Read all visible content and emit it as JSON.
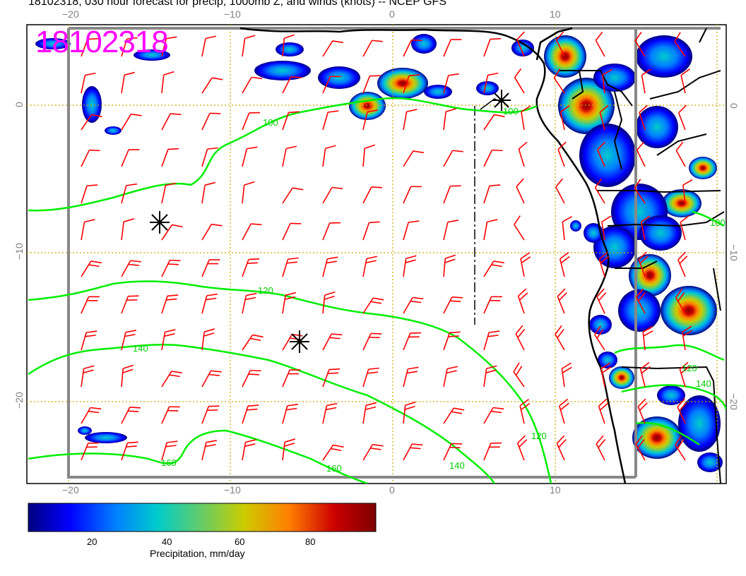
{
  "title": "18102318, 030 hour forecast for precip, 1000mb Z, and winds (knots) -- NCEP GFS",
  "stamp": "18102318",
  "axes": {
    "top_lon": [
      "−20",
      "−10",
      "0",
      "10"
    ],
    "bottom_lon": [
      "−20",
      "−10",
      "0",
      "10"
    ],
    "left_lat": [
      "0",
      "−10",
      "−20"
    ],
    "right_lat": [
      "0",
      "−10",
      "−20"
    ]
  },
  "contours": [
    "100",
    "100",
    "120",
    "140",
    "160",
    "160",
    "140",
    "120",
    "120",
    "140",
    "100"
  ],
  "colorbar": {
    "ticks": [
      "20",
      "40",
      "60",
      "80"
    ],
    "label": "Precipitation, mm/day",
    "colors": [
      "#00007f",
      "#0000ff",
      "#007fff",
      "#00cccc",
      "#66cc66",
      "#cccc00",
      "#ff7f00",
      "#cc0000",
      "#7f0000"
    ]
  },
  "map_colors": {
    "barbs": "#ff0000",
    "contours": "#00ee00",
    "grid": "#ccaa00",
    "frame": "#888888",
    "coast": "#000000"
  },
  "icons": [
    "storm-center-icon",
    "storm-center-icon",
    "storm-center-icon"
  ]
}
